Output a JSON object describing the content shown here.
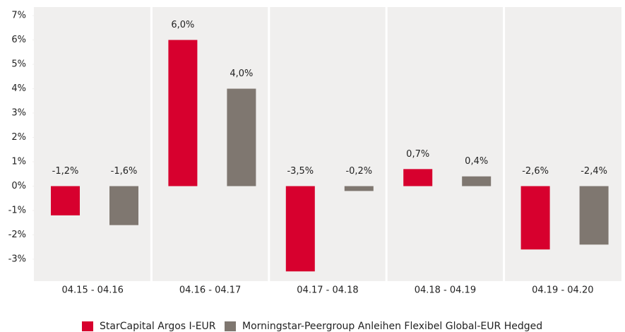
{
  "chart_data": {
    "type": "bar",
    "categories": [
      "04.15 - 04.16",
      "04.16 - 04.17",
      "04.17 - 04.18",
      "04.18 - 04.19",
      "04.19 - 04.20"
    ],
    "series": [
      {
        "name": "StarCapital Argos I-EUR",
        "color": "#d7002e",
        "values": [
          -1.2,
          6.0,
          -3.5,
          0.7,
          -2.6
        ],
        "value_labels": [
          "-1,2%",
          "6,0%",
          "-3,5%",
          "0,7%",
          "-2,6%"
        ]
      },
      {
        "name": "Morningstar-Peergroup Anleihen Flexibel Global-EUR Hedged",
        "color": "#7f7770",
        "values": [
          -1.6,
          4.0,
          -0.2,
          0.4,
          -2.4
        ],
        "value_labels": [
          "-1,6%",
          "4,0%",
          "-0,2%",
          "0,4%",
          "-2,4%"
        ]
      }
    ],
    "ylim": [
      -3.9,
      7.35
    ],
    "yticks": [
      {
        "value": -3,
        "label": "-3%"
      },
      {
        "value": -2,
        "label": "-2%"
      },
      {
        "value": -1,
        "label": "-1%"
      },
      {
        "value": 0,
        "label": "0%"
      },
      {
        "value": 1,
        "label": "1%"
      },
      {
        "value": 2,
        "label": "2%"
      },
      {
        "value": 3,
        "label": "3%"
      },
      {
        "value": 4,
        "label": "4%"
      },
      {
        "value": 5,
        "label": "5%"
      },
      {
        "value": 6,
        "label": "6%"
      },
      {
        "value": 7,
        "label": "7%"
      }
    ],
    "legend": "bottom"
  }
}
